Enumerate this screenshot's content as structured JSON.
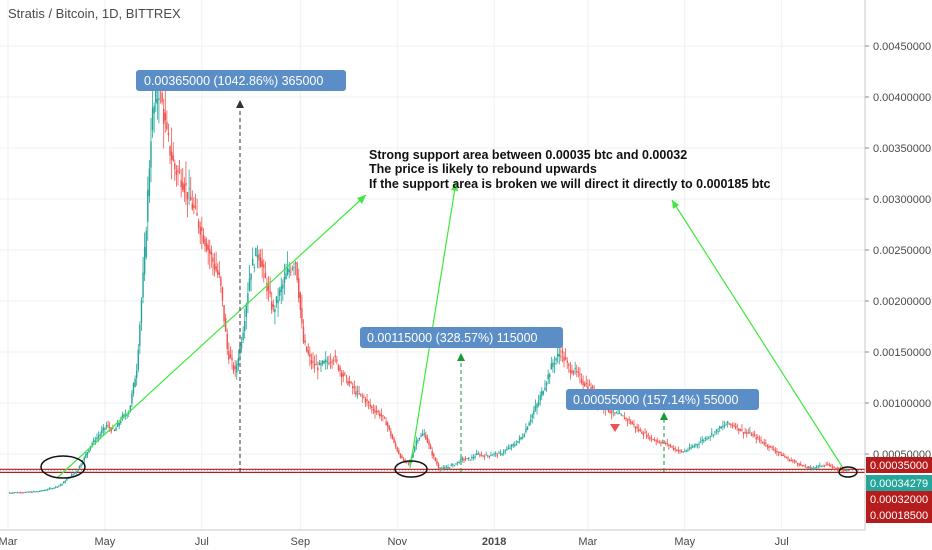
{
  "header": {
    "title": "Stratis / Bitcoin, 1D, BITTREX"
  },
  "colors": {
    "up": "#26a69a",
    "down": "#ef5350",
    "callout": "#5b8ec6",
    "trend": "#3ee83e",
    "support": "#b71c1c",
    "last_price": "#26a69a",
    "ellipse": "#111111"
  },
  "annotations": {
    "note_lines": [
      "Strong support area between 0.00035 btc and 0.00032",
      "The price is likely to rebound upwards",
      "If the support area is broken we will direct it directly to 0.000185 btc"
    ],
    "callouts": [
      {
        "text": "0.00365000 (1042.86%) 365000"
      },
      {
        "text": "0.00115000 (328.57%) 115000"
      },
      {
        "text": "0.00055000 (157.14%) 55000"
      }
    ]
  },
  "price_labels": [
    {
      "text": "0.00035000",
      "value": 0.00035,
      "color": "#b71c1c"
    },
    {
      "text": "0.00034279",
      "value": 0.00034279,
      "color": "#26a69a"
    },
    {
      "text": "0.00032000",
      "value": 0.00032,
      "color": "#b71c1c"
    },
    {
      "text": "0.00018500",
      "value": 0.000185,
      "color": "#b71c1c"
    }
  ],
  "chart_data": {
    "type": "line",
    "title": "Stratis / Bitcoin, 1D, BITTREX",
    "xlabel": "",
    "ylabel": "",
    "ylim": [
      0.0,
      0.0049
    ],
    "y_ticks": [
      "0.00050000",
      "0.00100000",
      "0.00150000",
      "0.00200000",
      "0.00250000",
      "0.00300000",
      "0.00350000",
      "0.00400000",
      "0.00450000"
    ],
    "y_tick_values": [
      0.0005,
      0.001,
      0.0015,
      0.002,
      0.0025,
      0.003,
      0.0035,
      0.004,
      0.0045
    ],
    "x_ticks": [
      "Mar",
      "May",
      "Jul",
      "Sep",
      "Nov",
      "2018",
      "Mar",
      "May",
      "Jul"
    ],
    "x_tick_index": [
      0,
      61,
      122,
      184,
      245,
      306,
      365,
      426,
      487
    ],
    "horizontal_levels": [
      0.00035,
      0.00032
    ],
    "series": [
      {
        "values": [
          0.00012,
          0.000125,
          0.000125,
          0.00013,
          0.000135,
          0.00015,
          0.00017,
          0.0002,
          0.00027,
          0.00033,
          0.00045,
          0.0006,
          0.00068,
          0.00078,
          0.00072,
          0.00085,
          0.00092,
          0.00135,
          0.0024,
          0.0038,
          0.0041,
          0.0036,
          0.0033,
          0.0032,
          0.003,
          0.0028,
          0.0026,
          0.0024,
          0.0022,
          0.0015,
          0.0013,
          0.0017,
          0.0023,
          0.0025,
          0.0022,
          0.0019,
          0.0021,
          0.0023,
          0.0024,
          0.0016,
          0.0014,
          0.00135,
          0.0014,
          0.00145,
          0.0013,
          0.0012,
          0.0011,
          0.00105,
          0.00095,
          0.0009,
          0.0008,
          0.0006,
          0.00045,
          0.0004,
          0.00065,
          0.0007,
          0.0005,
          0.00035,
          0.00037,
          0.0004,
          0.00045,
          0.00045,
          0.0005,
          0.00048,
          0.0005,
          0.0005,
          0.00055,
          0.0006,
          0.00068,
          0.00085,
          0.001,
          0.0012,
          0.0014,
          0.0015,
          0.00135,
          0.0013,
          0.0012,
          0.00115,
          0.001,
          0.00095,
          0.0009,
          0.00087,
          0.00083,
          0.00075,
          0.0007,
          0.00065,
          0.00062,
          0.0006,
          0.00055,
          0.00052,
          0.00055,
          0.0006,
          0.00065,
          0.0007,
          0.00075,
          0.0008,
          0.00078,
          0.00072,
          0.0007,
          0.00065,
          0.0006,
          0.00055,
          0.0005,
          0.00045,
          0.00042,
          0.00038,
          0.00036,
          0.00038,
          0.0004,
          0.00037,
          0.00035,
          0.00034279
        ]
      }
    ]
  }
}
